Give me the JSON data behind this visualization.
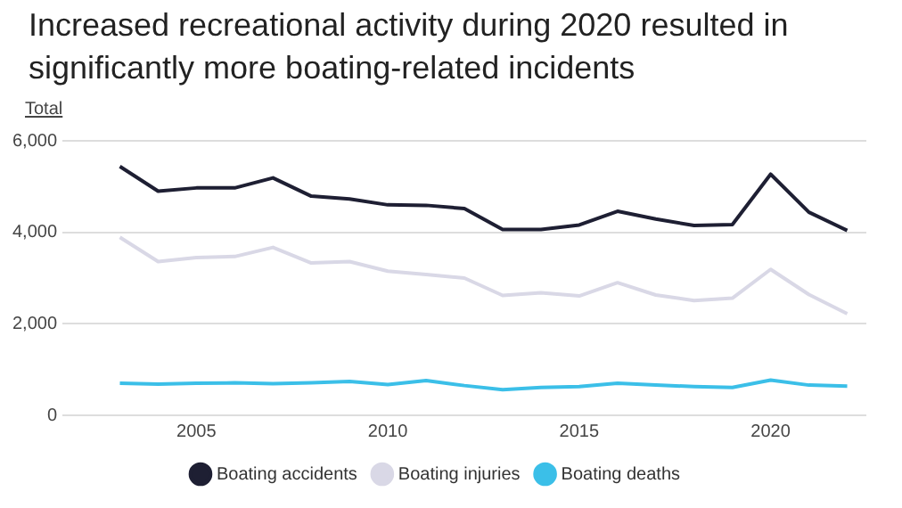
{
  "chart_data": {
    "type": "line",
    "title": "Increased recreational activity during 2020 resulted in significantly more boating-related incidents",
    "ylabel": "Total",
    "x": [
      2003,
      2004,
      2005,
      2006,
      2007,
      2008,
      2009,
      2010,
      2011,
      2012,
      2013,
      2014,
      2015,
      2016,
      2017,
      2018,
      2019,
      2020,
      2021,
      2022
    ],
    "series": [
      {
        "name": "Boating accidents",
        "color": "#1e1f33",
        "values": [
          5440,
          4900,
          4970,
          4970,
          5190,
          4790,
          4730,
          4600,
          4590,
          4520,
          4060,
          4060,
          4160,
          4460,
          4290,
          4150,
          4170,
          5270,
          4440,
          4040
        ]
      },
      {
        "name": "Boating injuries",
        "color": "#d9d8e6",
        "values": [
          3890,
          3360,
          3450,
          3470,
          3670,
          3330,
          3360,
          3150,
          3080,
          3000,
          2620,
          2680,
          2610,
          2900,
          2630,
          2510,
          2560,
          3190,
          2640,
          2220
        ]
      },
      {
        "name": "Boating deaths",
        "color": "#3bbfe8",
        "values": [
          700,
          680,
          700,
          710,
          690,
          710,
          740,
          670,
          760,
          650,
          560,
          610,
          630,
          700,
          660,
          630,
          610,
          770,
          660,
          640
        ]
      }
    ],
    "xlim": [
      2001.5,
      2022.5
    ],
    "xticks": [
      2005,
      2010,
      2015,
      2020
    ],
    "ylim": [
      0,
      6000
    ],
    "yticks": [
      {
        "value": 0,
        "label": "0"
      },
      {
        "value": 2000,
        "label": "2,000"
      },
      {
        "value": 4000,
        "label": "4,000"
      },
      {
        "value": 6000,
        "label": "6,000"
      }
    ],
    "grid": "y",
    "legend": "bottom",
    "marker": "none",
    "line_style": "solid"
  }
}
